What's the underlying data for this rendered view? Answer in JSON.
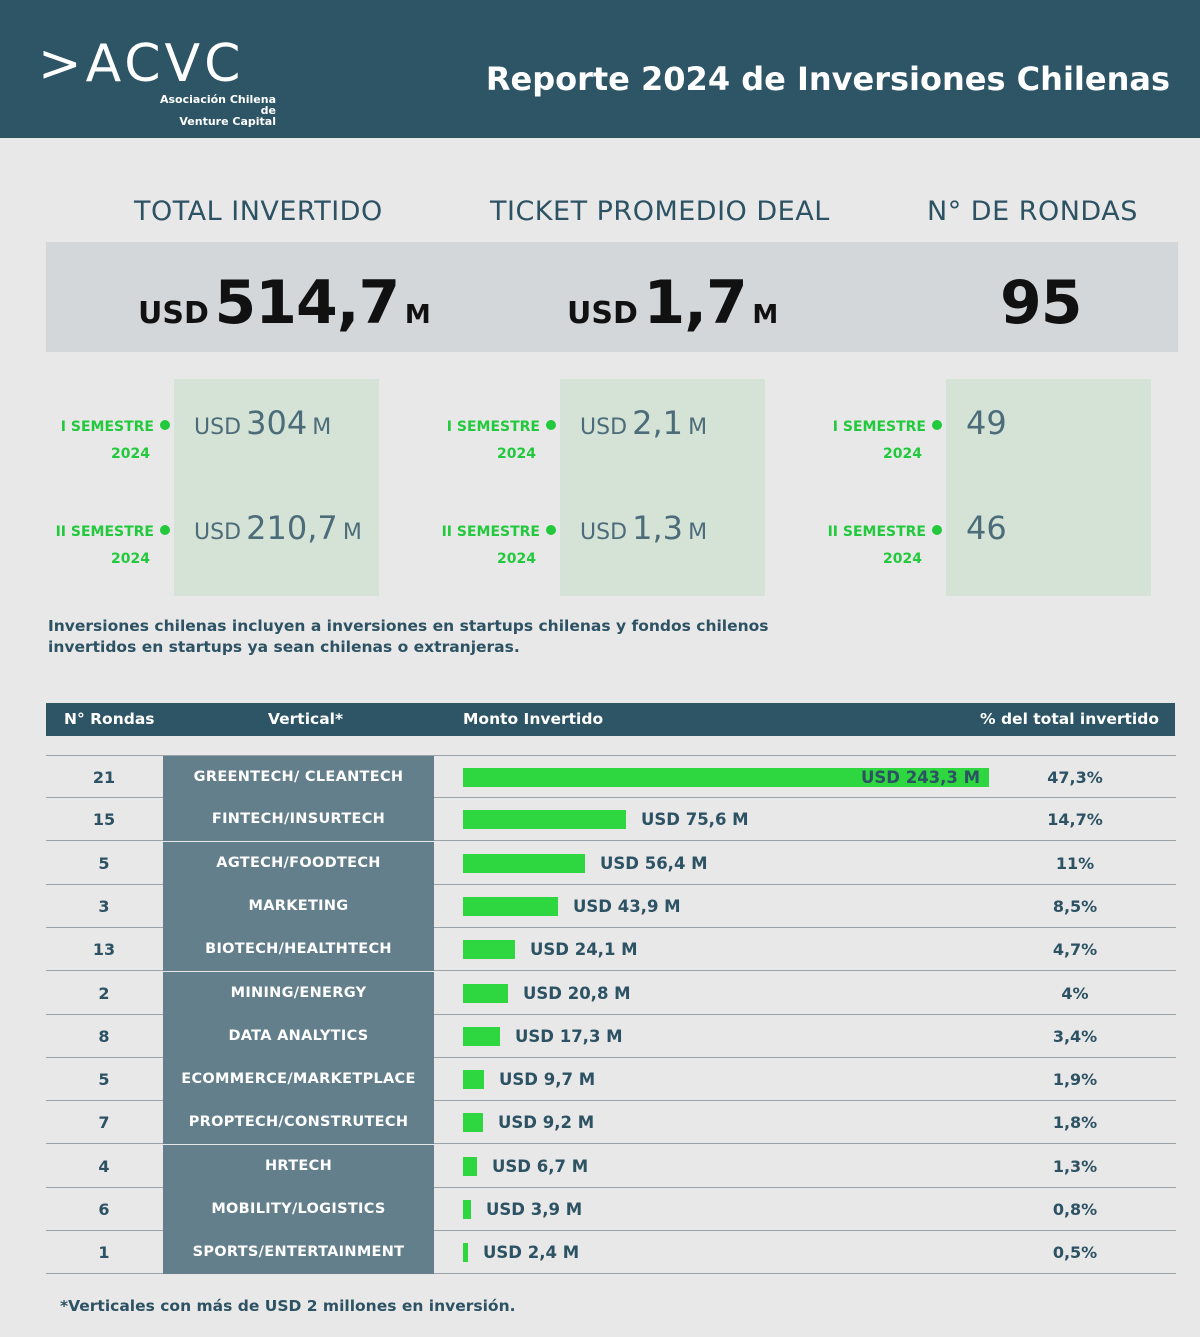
{
  "header": {
    "logo_text": ">ACVC",
    "logo_sub_line1": "Asociación Chilena de",
    "logo_sub_line2": "Venture Capital",
    "title": "Reporte 2024 de Inversiones Chilenas"
  },
  "kpis": [
    {
      "label": "TOTAL INVERTIDO",
      "currency": "USD",
      "value": "514,7",
      "unit": "M"
    },
    {
      "label": "TICKET PROMEDIO DEAL",
      "currency": "USD",
      "value": "1,7",
      "unit": "M"
    },
    {
      "label": "N° DE RONDAS",
      "currency": "",
      "value": "95",
      "unit": ""
    }
  ],
  "semesters": {
    "labels": {
      "s1_line1": "I SEMESTRE",
      "s1_line2": "2024",
      "s2_line1": "II SEMESTRE",
      "s2_line2": "2024"
    },
    "total": [
      {
        "currency": "USD",
        "value": "304",
        "unit": "M"
      },
      {
        "currency": "USD",
        "value": "210,7",
        "unit": "M"
      }
    ],
    "ticket": [
      {
        "currency": "USD",
        "value": "2,1",
        "unit": "M"
      },
      {
        "currency": "USD",
        "value": "1,3",
        "unit": "M"
      }
    ],
    "rounds": [
      {
        "currency": "",
        "value": "49",
        "unit": ""
      },
      {
        "currency": "",
        "value": "46",
        "unit": ""
      }
    ]
  },
  "note": "Inversiones chilenas incluyen a inversiones en startups chilenas y fondos chilenos invertidos en startups ya sean chilenas o extranjeras.",
  "colors": {
    "header_bg": "#2d5566",
    "accent_green": "#2ed63f",
    "vertical_bg": "#637f8b",
    "semester_box": "#d4e3d6"
  },
  "chart_data": {
    "type": "bar",
    "orientation": "horizontal",
    "columns": [
      "N° Rondas",
      "Vertical*",
      "Monto Invertido",
      "% del total invertido"
    ],
    "rows": [
      {
        "rounds": "21",
        "vertical": "GREENTECH/ CLEANTECH",
        "amount": 243.3,
        "amount_label": "USD 243,3 M",
        "pct": "47,3%"
      },
      {
        "rounds": "15",
        "vertical": "FINTECH/INSURTECH",
        "amount": 75.6,
        "amount_label": "USD 75,6 M",
        "pct": "14,7%"
      },
      {
        "rounds": "5",
        "vertical": "AGTECH/FOODTECH",
        "amount": 56.4,
        "amount_label": "USD 56,4 M",
        "pct": "11%"
      },
      {
        "rounds": "3",
        "vertical": "MARKETING",
        "amount": 43.9,
        "amount_label": "USD 43,9 M",
        "pct": "8,5%"
      },
      {
        "rounds": "13",
        "vertical": "BIOTECH/HEALTHTECH",
        "amount": 24.1,
        "amount_label": "USD 24,1 M",
        "pct": "4,7%"
      },
      {
        "rounds": "2",
        "vertical": "MINING/ENERGY",
        "amount": 20.8,
        "amount_label": "USD 20,8 M",
        "pct": "4%"
      },
      {
        "rounds": "8",
        "vertical": "DATA ANALYTICS",
        "amount": 17.3,
        "amount_label": "USD 17,3 M",
        "pct": "3,4%"
      },
      {
        "rounds": "5",
        "vertical": "ECOMMERCE/MARKETPLACE",
        "amount": 9.7,
        "amount_label": "USD 9,7 M",
        "pct": "1,9%"
      },
      {
        "rounds": "7",
        "vertical": "PROPTECH/CONSTRUTECH",
        "amount": 9.2,
        "amount_label": "USD 9,2 M",
        "pct": "1,8%"
      },
      {
        "rounds": "4",
        "vertical": "HRTECH",
        "amount": 6.7,
        "amount_label": "USD 6,7 M",
        "pct": "1,3%"
      },
      {
        "rounds": "6",
        "vertical": "MOBILITY/LOGISTICS",
        "amount": 3.9,
        "amount_label": "USD 3,9 M",
        "pct": "0,8%"
      },
      {
        "rounds": "1",
        "vertical": "SPORTS/ENTERTAINMENT",
        "amount": 2.4,
        "amount_label": "USD 2,4 M",
        "pct": "0,5%"
      }
    ]
  },
  "footnote": "*Verticales con más de USD 2 millones en inversión."
}
